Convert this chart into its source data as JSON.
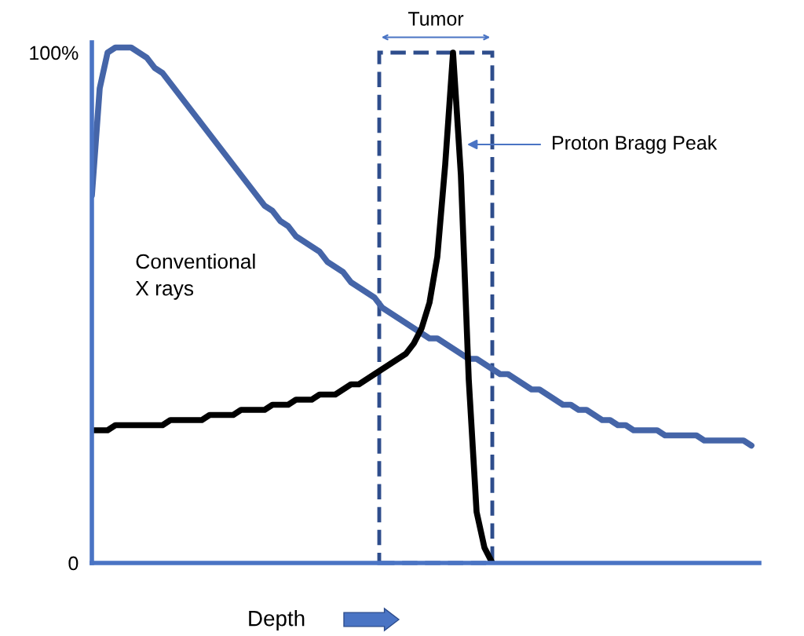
{
  "chart_data": {
    "type": "line",
    "categories": [
      null,
      null,
      null,
      null,
      null,
      null,
      null,
      null,
      null,
      null,
      null,
      null,
      null,
      null,
      null,
      null,
      null,
      null,
      null,
      null,
      null,
      null,
      null,
      null,
      null,
      null,
      null,
      null,
      null,
      null,
      null,
      null,
      null,
      null,
      null,
      null,
      null,
      null,
      null,
      null,
      null,
      null,
      null,
      null,
      null,
      null,
      null,
      null,
      null,
      null,
      null,
      null,
      null,
      null,
      null,
      null,
      null,
      null,
      null,
      null,
      null,
      null,
      null,
      null,
      null,
      null,
      null,
      null,
      null,
      null,
      null,
      null,
      null,
      null,
      null,
      null,
      null,
      null,
      null,
      null,
      null,
      null,
      null,
      null,
      null,
      null
    ],
    "series": [
      {
        "color": "#4565a8",
        "values": [
          72,
          93,
          100,
          101,
          101,
          101,
          100,
          99,
          97,
          96,
          94,
          92,
          90,
          88,
          86,
          84,
          82,
          80,
          78,
          76,
          74,
          72,
          70,
          69,
          67,
          66,
          64,
          63,
          62,
          61,
          59,
          58,
          57,
          55,
          54,
          53,
          52,
          50,
          49,
          48,
          47,
          46,
          45,
          44,
          44,
          43,
          42,
          41,
          40,
          40,
          39,
          38,
          37,
          37,
          36,
          35,
          34,
          34,
          33,
          32,
          31,
          31,
          30,
          30,
          29,
          28,
          28,
          27,
          27,
          26,
          26,
          26,
          26,
          25,
          25,
          25,
          25,
          25,
          24,
          24,
          24,
          24,
          24,
          24,
          23,
          null
        ]
      },
      {
        "color": "#000000",
        "values": [
          26,
          26,
          26,
          27,
          27,
          27,
          27,
          27,
          27,
          27,
          28,
          28,
          28,
          28,
          28,
          29,
          29,
          29,
          29,
          30,
          30,
          30,
          30,
          31,
          31,
          31,
          32,
          32,
          32,
          33,
          33,
          33,
          34,
          35,
          35,
          36,
          37,
          38,
          39,
          40,
          41,
          43,
          46,
          51,
          60,
          78,
          100,
          76,
          36,
          10,
          3,
          0,
          null,
          null,
          null,
          null,
          null,
          null,
          null,
          null,
          null,
          null,
          null,
          null,
          null,
          null,
          null,
          null,
          null,
          null,
          null,
          null,
          null,
          null,
          null,
          null,
          null,
          null,
          null,
          null,
          null,
          null,
          null,
          null,
          null,
          null
        ]
      }
    ],
    "ylim": [
      0,
      102
    ],
    "yticks": [
      0,
      {
        "value": 100,
        "label": "100%"
      }
    ],
    "tick_labels": "y",
    "xlabel": "Depth",
    "annotations": [
      "Tumor",
      "Conventional\nX rays",
      "Proton Bragg Peak"
    ],
    "legend": false,
    "grid": false
  }
}
